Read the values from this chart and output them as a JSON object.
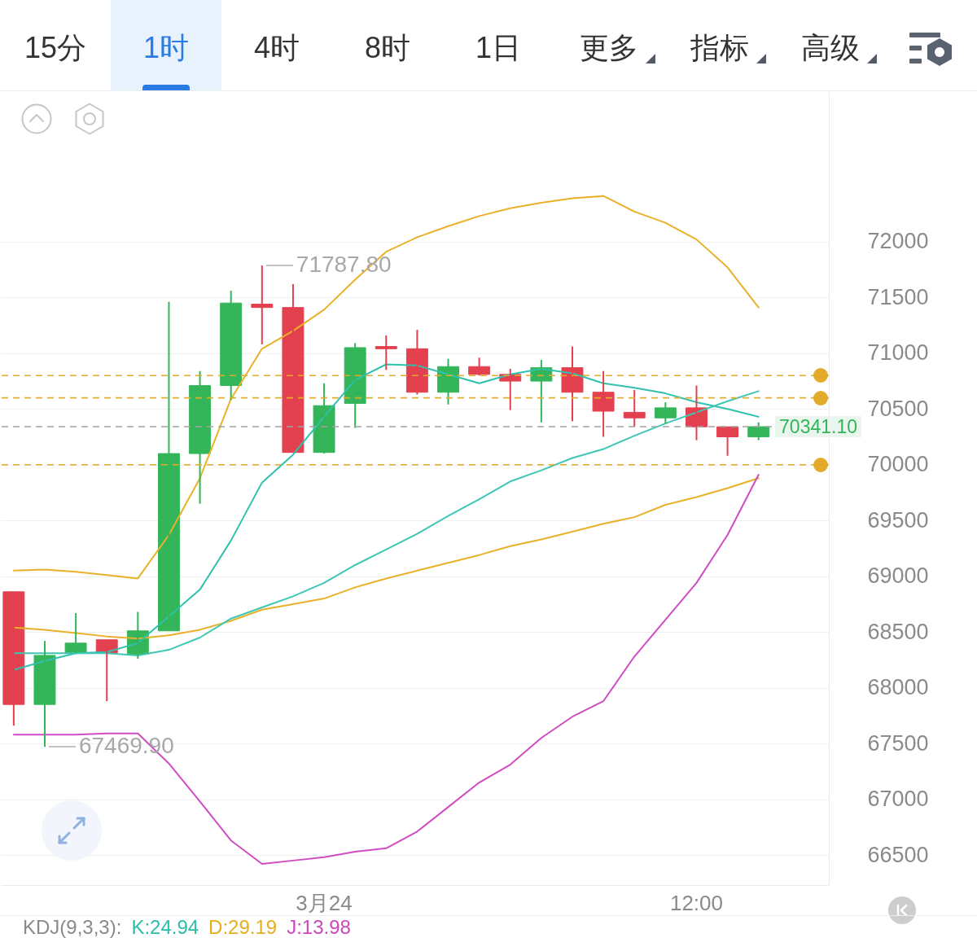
{
  "chart_data": [
    {
      "type": "other",
      "annotations": [
        "15分",
        "1时",
        "4时",
        "8时",
        "1日",
        "更多",
        "指标",
        "高级"
      ]
    },
    {
      "type": "candlestick",
      "categories": [
        null,
        null,
        null,
        null,
        null,
        null,
        null,
        null,
        null,
        null,
        "3月24",
        null,
        null,
        null,
        null,
        null,
        null,
        null,
        null,
        null,
        null,
        null,
        "12:00",
        null,
        null
      ],
      "ylim": [
        66230,
        73350
      ],
      "yticks": [
        66500,
        67000,
        67500,
        68000,
        68500,
        69000,
        69500,
        70000,
        70500,
        71000,
        71500,
        72000
      ],
      "grid": "y",
      "ohlc": [
        [
          68860,
          68860,
          67660,
          67850
        ],
        [
          67850,
          68420,
          67469.9,
          68290
        ],
        [
          68310,
          68670,
          68310,
          68400
        ],
        [
          68430,
          68430,
          67880,
          68310
        ],
        [
          68300,
          68680,
          68260,
          68510
        ],
        [
          68510,
          71460,
          68510,
          70100
        ],
        [
          70100,
          70840,
          69650,
          70710
        ],
        [
          70710,
          71560,
          70580,
          71450
        ],
        [
          71440,
          71787.8,
          71080,
          71410
        ],
        [
          71410,
          71620,
          70110,
          70110
        ],
        [
          70110,
          70730,
          70100,
          70530
        ],
        [
          70550,
          71090,
          70330,
          71050
        ],
        [
          71060,
          71160,
          70850,
          71040
        ],
        [
          71040,
          71210,
          70630,
          70650
        ],
        [
          70650,
          70950,
          70540,
          70880
        ],
        [
          70880,
          70960,
          70800,
          70810
        ],
        [
          70810,
          70860,
          70490,
          70750
        ],
        [
          70750,
          70940,
          70380,
          70870
        ],
        [
          70870,
          71060,
          70390,
          70650
        ],
        [
          70650,
          70840,
          70250,
          70480
        ],
        [
          70470,
          70670,
          70340,
          70420
        ],
        [
          70420,
          70560,
          70370,
          70510
        ],
        [
          70510,
          70710,
          70220,
          70340
        ],
        [
          70340,
          70340,
          70080,
          70250
        ],
        [
          70250,
          70380,
          70220,
          70341.1
        ]
      ],
      "colors": [
        "#e3414f",
        "#34b55a",
        "#34b55a",
        "#e3414f",
        "#34b55a",
        "#34b55a",
        "#34b55a",
        "#34b55a",
        "#e3414f",
        "#e3414f",
        "#34b55a",
        "#34b55a",
        "#e3414f",
        "#e3414f",
        "#34b55a",
        "#e3414f",
        "#e3414f",
        "#34b55a",
        "#e3414f",
        "#e3414f",
        "#e3414f",
        "#34b55a",
        "#e3414f",
        "#e3414f",
        "#34b55a"
      ],
      "series": [
        {
          "type": "line",
          "color": "#e9b12a",
          "values": [
            69050,
            69060,
            69040,
            69010,
            68980,
            69370,
            69880,
            70590,
            71040,
            71200,
            71390,
            71660,
            71910,
            72040,
            72140,
            72230,
            72300,
            72350,
            72390,
            72410,
            72270,
            72170,
            72020,
            71770,
            71410
          ]
        },
        {
          "type": "line",
          "color": "#e9b12a",
          "values": [
            68540,
            68520,
            68490,
            68460,
            68440,
            68470,
            68520,
            68600,
            68700,
            68750,
            68800,
            68900,
            68980,
            69050,
            69120,
            69190,
            69270,
            69330,
            69400,
            69470,
            69530,
            69640,
            69710,
            69790,
            69880
          ]
        },
        {
          "type": "line",
          "color": "#d04cc2",
          "values": [
            67580,
            67580,
            67580,
            67590,
            67590,
            67320,
            66980,
            66630,
            66420,
            66450,
            66480,
            66530,
            66560,
            66710,
            66930,
            67150,
            67310,
            67550,
            67740,
            67880,
            68280,
            68610,
            68940,
            69370,
            69910
          ]
        },
        {
          "type": "line",
          "color": "#2fc1ad",
          "values": [
            68160,
            68240,
            68310,
            68320,
            68400,
            68640,
            68880,
            69320,
            69840,
            70090,
            70430,
            70760,
            70900,
            70890,
            70810,
            70730,
            70810,
            70860,
            70820,
            70730,
            70690,
            70640,
            70560,
            70500,
            70430
          ]
        },
        {
          "type": "line",
          "color": "#3ec7b4",
          "values": [
            68310,
            68310,
            68310,
            68310,
            68290,
            68340,
            68450,
            68620,
            68720,
            68820,
            68940,
            69100,
            69240,
            69380,
            69540,
            69690,
            69850,
            69950,
            70060,
            70140,
            70260,
            70370,
            70470,
            70570,
            70660
          ]
        }
      ],
      "ref_lines": [
        {
          "axis": "y",
          "value": 70800,
          "color": "#e2ac2a",
          "line_style": "dashed"
        },
        {
          "axis": "y",
          "value": 70600,
          "color": "#e2ac2a",
          "line_style": "dashed"
        },
        {
          "axis": "y",
          "value": 70341.1,
          "label": "70341.10",
          "color": "#a3a3a3",
          "line_style": "dashed"
        },
        {
          "axis": "y",
          "value": 70000,
          "color": "#e2ac2a",
          "line_style": "dashed"
        }
      ],
      "annotations": [
        "71787.80",
        "67469.90"
      ]
    },
    {
      "type": "other",
      "annotations": [
        "KDJ(9,3,3):",
        "K:24.94",
        "D:29.19",
        "J:13.98"
      ]
    }
  ]
}
